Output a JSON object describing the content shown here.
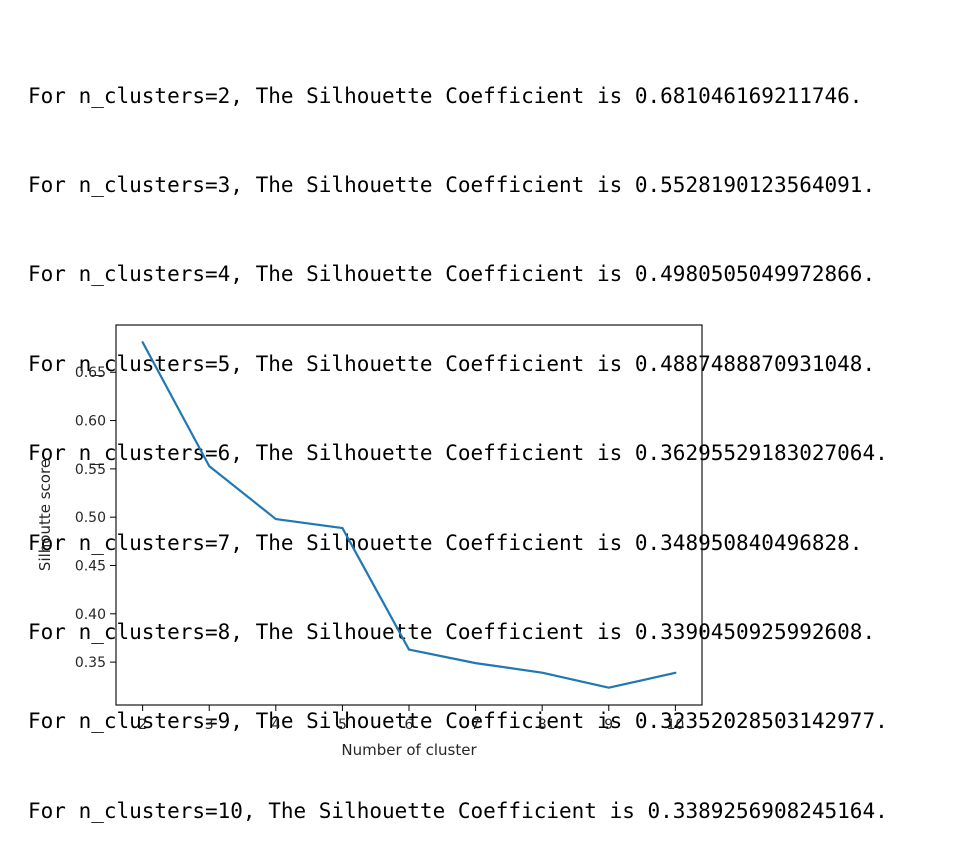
{
  "output_lines": [
    "For n_clusters=2, The Silhouette Coefficient is 0.681046169211746.",
    "For n_clusters=3, The Silhouette Coefficient is 0.5528190123564091.",
    "For n_clusters=4, The Silhouette Coefficient is 0.4980505049972866.",
    "For n_clusters=5, The Silhouette Coefficient is 0.4887488870931048.",
    "For n_clusters=6, The Silhouette Coefficient is 0.36295529183027064.",
    "For n_clusters=7, The Silhouette Coefficient is 0.348950840496828.",
    "For n_clusters=8, The Silhouette Coefficient is 0.3390450925992608.",
    "For n_clusters=9, The Silhouette Coefficient is 0.32352028503142977.",
    "For n_clusters=10, The Silhouette Coefficient is 0.3389256908245164."
  ],
  "chart_data": {
    "type": "line",
    "title": "",
    "xlabel": "Number of cluster",
    "ylabel": "Silhoutte score",
    "x": [
      2,
      3,
      4,
      5,
      6,
      7,
      8,
      9,
      10
    ],
    "series": [
      {
        "values": [
          0.681046169211746,
          0.5528190123564091,
          0.4980505049972866,
          0.4887488870931048,
          0.36295529183027064,
          0.348950840496828,
          0.3390450925992608,
          0.32352028503142977,
          0.3389256908245164
        ],
        "color": "#1f77b4"
      }
    ],
    "xticks": [
      "2",
      "3",
      "4",
      "5",
      "6",
      "7",
      "8",
      "9",
      "10"
    ],
    "yticks": [
      "0.35",
      "0.40",
      "0.45",
      "0.50",
      "0.55",
      "0.60",
      "0.65"
    ],
    "xlim": [
      1.6,
      10.4
    ],
    "ylim": [
      0.3056,
      0.6989
    ],
    "grid": false,
    "legend": false
  }
}
